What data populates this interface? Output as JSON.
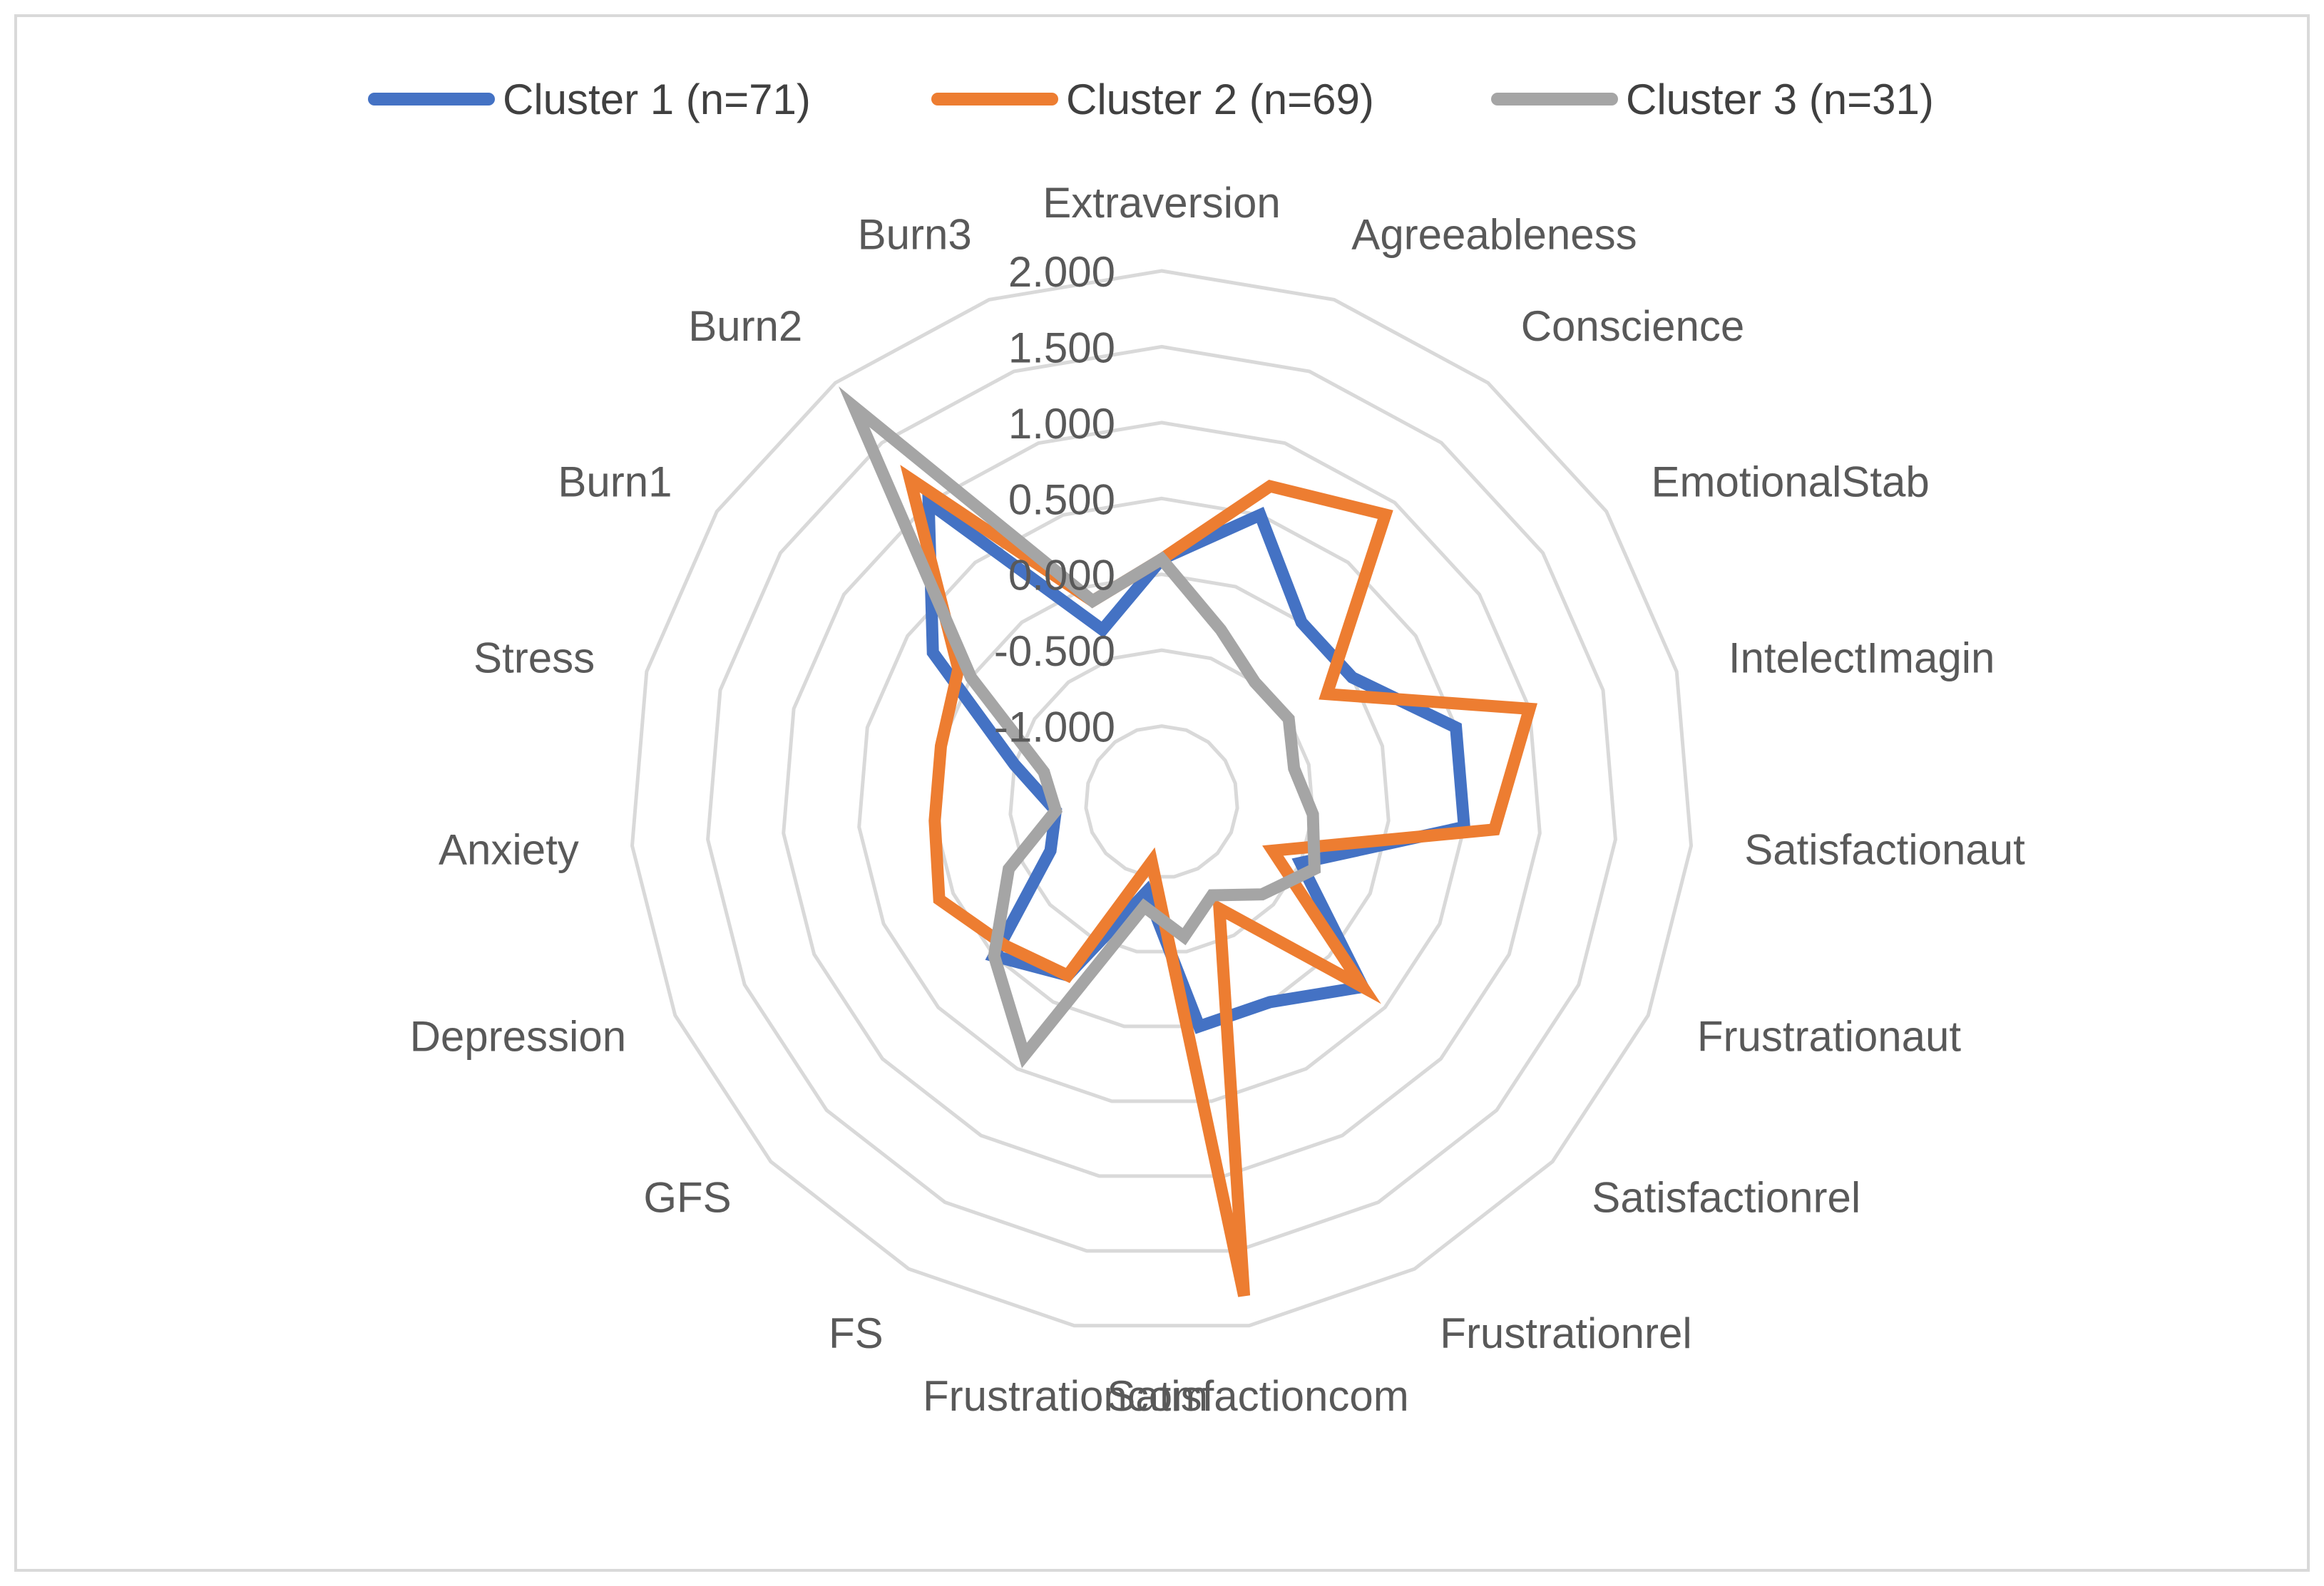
{
  "chart_data": {
    "type": "radar",
    "categories": [
      "Extraversion",
      "Agreeableness",
      "Conscience",
      "EmotionalStab",
      "IntelectImagin",
      "Satisfactionaut",
      "Frustrationaut",
      "Satisfactionrel",
      "Frustrationrel",
      "Satisfactioncom",
      "Frustrationcom",
      "FS",
      "GFS",
      "Depression",
      "Anxiety",
      "Stress",
      "Burn1",
      "Burn2",
      "Burn3"
    ],
    "ticks": [
      "2.000",
      "1.500",
      "1.000",
      "0.500",
      "0.000",
      "-0.500",
      "-1.000"
    ],
    "rlim": [
      -1.5,
      2.0
    ],
    "grid": true,
    "legend_position": "top",
    "series": [
      {
        "name": "Cluster 1 (n=71)",
        "color": "#4472C4",
        "values": [
          0.1,
          0.5,
          0.0,
          0.0,
          0.5,
          0.5,
          -0.5,
          0.3,
          0.0,
          0.0,
          -0.9,
          -0.2,
          0.0,
          -0.7,
          -0.8,
          -0.5,
          0.3,
          1.0,
          -0.3
        ]
      },
      {
        "name": "Cluster 2 (n=69)",
        "color": "#ED7D31",
        "values": [
          0.1,
          0.7,
          0.9,
          -0.2,
          1.0,
          0.7,
          -0.7,
          0.3,
          -0.7,
          1.8,
          -1.1,
          -0.2,
          -0.1,
          0.1,
          0.0,
          0.0,
          0.1,
          1.2,
          -0.1
        ]
      },
      {
        "name": "Cluster 3 (n=31)",
        "color": "#A5A5A5",
        "values": [
          0.1,
          -0.3,
          -0.5,
          -0.5,
          -0.6,
          -0.5,
          -0.4,
          -0.6,
          -0.8,
          -0.6,
          -0.8,
          0.4,
          0.0,
          -0.4,
          -0.8,
          -0.7,
          0.0,
          1.8,
          -0.1
        ]
      }
    ]
  }
}
